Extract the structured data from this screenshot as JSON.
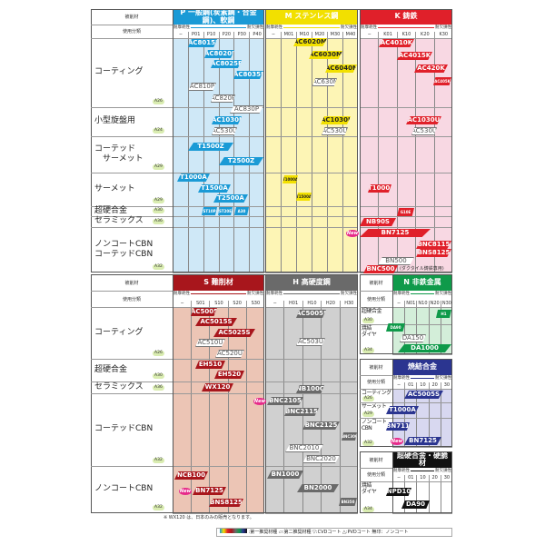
{
  "common": {
    "material_label": "被削材",
    "class_label": "使用分類",
    "arrow_left": "耐摩耗性",
    "arrow_right": "耐欠損性"
  },
  "colors": {
    "P": "#1a9ad6",
    "M": "#f2e000",
    "K": "#e0202a",
    "S": "#a8161c",
    "H": "#6a6a6a",
    "N": "#0f9a4a",
    "sinter": "#2b3590",
    "carbide": "#111111",
    "new": "#e62b8a"
  },
  "top": {
    "panels": [
      {
        "key": "P",
        "title": "P 一般鋼(炭素鋼・合金鋼)、軟鋼",
        "codes": [
          "−",
          "P01",
          "P10",
          "P20",
          "P30",
          "P40"
        ]
      },
      {
        "key": "M",
        "title": "M ステンレス鋼",
        "codes": [
          "−",
          "M01",
          "M10",
          "M20",
          "M30",
          "M40"
        ]
      },
      {
        "key": "K",
        "title": "K 鋳鉄",
        "codes": [
          "−",
          "K01",
          "K10",
          "K20",
          "K30"
        ]
      }
    ],
    "rows": [
      {
        "label": "コーティング",
        "ref": "A26"
      },
      {
        "label": "小型旋盤用",
        "ref": "A24"
      },
      {
        "label": "コーテッド\n　サーメット",
        "ref": "A29"
      },
      {
        "label": "サーメット",
        "ref": "A29"
      },
      {
        "label": "超硬合金",
        "ref": "A30"
      },
      {
        "label": "セラミックス",
        "ref": "A36"
      },
      {
        "label": "ノンコートCBN\nコーテッドCBN",
        "ref": "A32"
      }
    ],
    "k_note": "(ダクタイル鋳鉄専用)"
  },
  "bottom": {
    "panels": [
      {
        "key": "S",
        "title": "S 難削材",
        "codes": [
          "−",
          "S01",
          "S10",
          "S20",
          "S30"
        ]
      },
      {
        "key": "H",
        "title": "H 高硬度鋼",
        "codes": [
          "−",
          "H01",
          "H10",
          "H20",
          "H30"
        ]
      }
    ],
    "rows": [
      {
        "label": "コーティング",
        "ref": "A26"
      },
      {
        "label": "超硬合金",
        "ref": "A30"
      },
      {
        "label": "セラミックス",
        "ref": "A36"
      },
      {
        "label": "コーテッドCBN",
        "ref": "A32"
      },
      {
        "label": "ノンコートCBN",
        "ref": "A32"
      }
    ]
  },
  "side": [
    {
      "key": "N",
      "title": "N 非鉄金属",
      "codes": [
        "−",
        "N01",
        "N10",
        "N20",
        "N30"
      ],
      "rows": [
        {
          "label": "超硬合金",
          "ref": "A30"
        },
        {
          "label": "焼結\nダイヤ",
          "ref": "A34"
        }
      ]
    },
    {
      "key": "sinter",
      "title": "焼結合金",
      "codes": [
        "−",
        "01",
        "10",
        "20",
        "30"
      ],
      "rows": [
        {
          "label": "コーティング",
          "ref": "A26"
        },
        {
          "label": "サーメット",
          "ref": "A29"
        },
        {
          "label": "ノンコート\nCBN",
          "ref": "A32"
        }
      ]
    },
    {
      "key": "carbide",
      "title": "超硬合金・硬脆材",
      "codes": [
        "−",
        "01",
        "10",
        "20",
        "30"
      ],
      "rows": [
        {
          "label": "焼結\nダイヤ",
          "ref": "A34"
        }
      ]
    }
  ],
  "chips": [
    {
      "t": "AC8015P",
      "c": "P"
    },
    {
      "t": "AC8020P",
      "c": "P"
    },
    {
      "t": "AC8025P",
      "c": "P"
    },
    {
      "t": "AC8035P",
      "c": "P"
    },
    {
      "t": "AC810P",
      "c": "o"
    },
    {
      "t": "AC820P",
      "c": "o"
    },
    {
      "t": "AC830P",
      "c": "o"
    },
    {
      "t": "AC1030U",
      "c": "P"
    },
    {
      "t": "AC530U",
      "c": "o"
    },
    {
      "t": "T1500Z",
      "c": "P"
    },
    {
      "t": "T2500Z",
      "c": "P"
    },
    {
      "t": "T1000A",
      "c": "P"
    },
    {
      "t": "T1500A",
      "c": "P"
    },
    {
      "t": "T2500A",
      "c": "P"
    },
    {
      "t": "ST10P",
      "c": "P"
    },
    {
      "t": "ST20E",
      "c": "P"
    },
    {
      "t": "A30",
      "c": "P"
    },
    {
      "t": "AC6020M",
      "c": "M"
    },
    {
      "t": "AC6030M",
      "c": "M"
    },
    {
      "t": "AC6040M",
      "c": "M"
    },
    {
      "t": "AC630M",
      "c": "o"
    },
    {
      "t": "AC1030U",
      "c": "M"
    },
    {
      "t": "AC530U",
      "c": "o"
    },
    {
      "t": "T1000A",
      "c": "M"
    },
    {
      "t": "T1500A",
      "c": "M"
    },
    {
      "t": "AC4010K",
      "c": "K"
    },
    {
      "t": "AC4015K",
      "c": "K"
    },
    {
      "t": "AC420K",
      "c": "K"
    },
    {
      "t": "AC405K",
      "c": "K"
    },
    {
      "t": "AC1030U",
      "c": "K"
    },
    {
      "t": "AC530U",
      "c": "o"
    },
    {
      "t": "T1000A",
      "c": "K"
    },
    {
      "t": "G10E",
      "c": "K"
    },
    {
      "t": "NB90S",
      "c": "K"
    },
    {
      "t": "BN7125",
      "c": "K",
      "new": true
    },
    {
      "t": "BNC8115",
      "c": "K"
    },
    {
      "t": "BNS8125",
      "c": "K"
    },
    {
      "t": "BN500",
      "c": "o"
    },
    {
      "t": "BNC500",
      "c": "K"
    },
    {
      "t": "AC5005S",
      "c": "S"
    },
    {
      "t": "AC5015S",
      "c": "S"
    },
    {
      "t": "AC5025S",
      "c": "S"
    },
    {
      "t": "AC510U",
      "c": "o"
    },
    {
      "t": "AC520U",
      "c": "o"
    },
    {
      "t": "EH510",
      "c": "S"
    },
    {
      "t": "EH520",
      "c": "S"
    },
    {
      "t": "WX120",
      "c": "S"
    },
    {
      "t": "NCB100",
      "c": "S"
    },
    {
      "t": "BN7125",
      "c": "S",
      "new": true
    },
    {
      "t": "BNS8125",
      "c": "S"
    },
    {
      "t": "AC5005S",
      "c": "H"
    },
    {
      "t": "AC503U",
      "c": "o"
    },
    {
      "t": "NB100C",
      "c": "H"
    },
    {
      "t": "BNC2105",
      "c": "H",
      "new": true
    },
    {
      "t": "BNC2115",
      "c": "H"
    },
    {
      "t": "BNC2125",
      "c": "H"
    },
    {
      "t": "BNC300",
      "c": "H"
    },
    {
      "t": "BNC2010",
      "c": "o"
    },
    {
      "t": "BNC2020",
      "c": "o"
    },
    {
      "t": "BN1000",
      "c": "H"
    },
    {
      "t": "BN2000",
      "c": "H"
    },
    {
      "t": "BN350",
      "c": "H"
    },
    {
      "t": "H1",
      "c": "N"
    },
    {
      "t": "DA90",
      "c": "N"
    },
    {
      "t": "DA150",
      "c": "o"
    },
    {
      "t": "DA1000",
      "c": "N"
    },
    {
      "t": "AC5005S",
      "c": "sinter"
    },
    {
      "t": "T1000A",
      "c": "sinter"
    },
    {
      "t": "BN7115",
      "c": "sinter"
    },
    {
      "t": "BN7125",
      "c": "sinter",
      "new": true
    },
    {
      "t": "NPD10",
      "c": "carbide"
    },
    {
      "t": "DA90",
      "c": "carbide"
    }
  ],
  "new_label": "New",
  "footnote": "※ WX120 は、日本のみの販売となります。",
  "legend": {
    "first": "第一推奨材種",
    "second": "第二推奨材種",
    "cvd": "CVDコート",
    "pvd": "PVDコート",
    "none": "無印：ノンコート"
  }
}
